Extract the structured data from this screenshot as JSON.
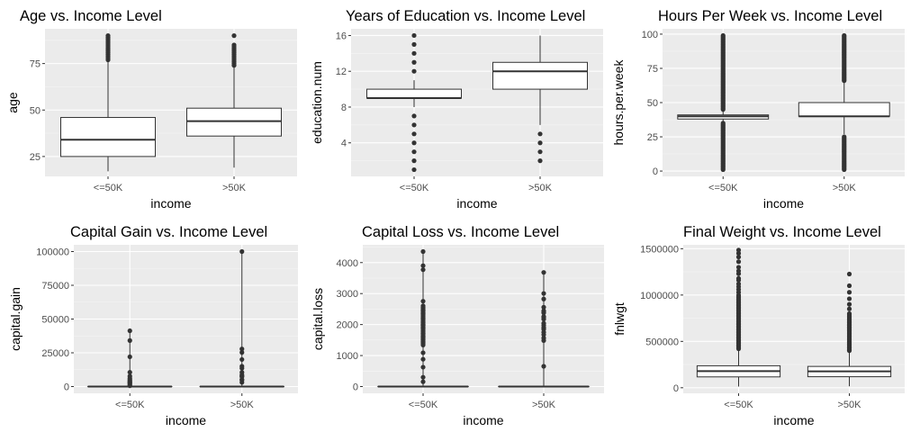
{
  "colors": {
    "panel": "#ebebeb",
    "grid_major": "#ffffff",
    "outlier": "#333333",
    "box_fill": "#ffffff",
    "box_line": "#333333"
  },
  "chart_data": [
    {
      "type": "boxplot",
      "title": "Age vs. Income Level",
      "xlabel": "income",
      "ylabel": "age",
      "categories": [
        "<=50K",
        ">50K"
      ],
      "ylim": [
        14.3,
        93.7
      ],
      "yticks": [
        25,
        50,
        75
      ],
      "ytick_labels": [
        "25",
        "50",
        "75"
      ],
      "boxes": [
        {
          "min": 17,
          "q1": 25,
          "median": 34,
          "q3": 46,
          "max": 90,
          "whisker_high": 76,
          "outliers": [
            77,
            78,
            79,
            80,
            81,
            82,
            83,
            84,
            85,
            86,
            87,
            88,
            89,
            90
          ]
        },
        {
          "min": 19,
          "q1": 36,
          "median": 44,
          "q3": 51,
          "max": 90,
          "whisker_high": 73,
          "outliers": [
            74,
            75,
            76,
            77,
            78,
            79,
            80,
            81,
            82,
            83,
            84,
            85,
            90
          ]
        }
      ]
    },
    {
      "type": "boxplot",
      "title": "Years of Education vs. Income Level",
      "xlabel": "income",
      "ylabel": "education.num",
      "categories": [
        "<=50K",
        ">50K"
      ],
      "ylim": [
        0.25,
        16.75
      ],
      "yticks": [
        4,
        8,
        12,
        16
      ],
      "ytick_labels": [
        "4",
        "8",
        "12",
        "16"
      ],
      "boxes": [
        {
          "min": 1,
          "whisker_low": 8,
          "q1": 9,
          "median": 9,
          "q3": 10,
          "whisker_high": 11,
          "max": 16,
          "outliers": [
            1,
            2,
            3,
            4,
            5,
            6,
            7,
            12,
            13,
            14,
            15,
            16
          ]
        },
        {
          "min": 2,
          "whisker_low": 6,
          "q1": 10,
          "median": 12,
          "q3": 13,
          "whisker_high": 16,
          "max": 16,
          "outliers": [
            2,
            3,
            4,
            5
          ]
        }
      ]
    },
    {
      "type": "boxplot",
      "title": "Hours Per Week vs. Income Level",
      "xlabel": "income",
      "ylabel": "hours.per.week",
      "categories": [
        "<=50K",
        ">50K"
      ],
      "ylim": [
        -3.9,
        103.9
      ],
      "yticks": [
        0,
        25,
        50,
        75,
        100
      ],
      "ytick_labels": [
        "0",
        "25",
        "50",
        "75",
        "100"
      ],
      "boxes": [
        {
          "min": 1,
          "whisker_low": 36,
          "q1": 38,
          "median": 40,
          "q3": 41,
          "whisker_high": 44,
          "max": 99,
          "outlier_range_low": [
            1,
            35
          ],
          "outlier_range_high": [
            45,
            99
          ]
        },
        {
          "min": 1,
          "whisker_low": 27,
          "q1": 40,
          "median": 40,
          "q3": 50,
          "whisker_high": 65,
          "max": 99,
          "outlier_range_low": [
            1,
            25
          ],
          "outlier_range_high": [
            66,
            99
          ]
        }
      ]
    },
    {
      "type": "boxplot",
      "title": "Capital Gain vs. Income Level",
      "xlabel": "income",
      "ylabel": "capital.gain",
      "categories": [
        "<=50K",
        ">50K"
      ],
      "ylim": [
        -5000,
        105000
      ],
      "yticks": [
        0,
        25000,
        50000,
        75000,
        100000
      ],
      "ytick_labels": [
        "0",
        "25000",
        "50000",
        "75000",
        "100000"
      ],
      "boxes": [
        {
          "min": 0,
          "q1": 0,
          "median": 0,
          "q3": 0,
          "max": 41310,
          "outliers": [
            594,
            1055,
            2174,
            2885,
            3411,
            4101,
            5013,
            6097,
            7688,
            10566,
            22040,
            34095,
            41310
          ]
        },
        {
          "min": 0,
          "q1": 0,
          "median": 0,
          "q3": 0,
          "max": 99999,
          "outliers": [
            3103,
            4787,
            5178,
            7298,
            7688,
            8614,
            10520,
            13550,
            15024,
            20051,
            25236,
            27828,
            99999
          ]
        }
      ]
    },
    {
      "type": "boxplot",
      "title": "Capital Loss vs. Income Level",
      "xlabel": "income",
      "ylabel": "capital.loss",
      "categories": [
        "<=50K",
        ">50K"
      ],
      "ylim": [
        -218,
        4574
      ],
      "yticks": [
        0,
        1000,
        2000,
        3000,
        4000
      ],
      "ytick_labels": [
        "0",
        "1000",
        "2000",
        "3000",
        "4000"
      ],
      "boxes": [
        {
          "min": 0,
          "q1": 0,
          "median": 0,
          "q3": 0,
          "max": 4356,
          "outliers": [
            155,
            300,
            625,
            880,
            1090,
            1340,
            1590,
            1720,
            1876,
            1980,
            2001,
            2205,
            2339,
            2467,
            2603,
            2754,
            3770,
            3900,
            4356
          ],
          "outlier_range": [
            1380,
            2560
          ]
        },
        {
          "min": 0,
          "q1": 0,
          "median": 0,
          "q3": 0,
          "max": 3683,
          "outliers": [
            653,
            1485,
            1564,
            1672,
            1755,
            1848,
            1887,
            1902,
            1977,
            2042,
            2174,
            2231,
            2258,
            2377,
            2415,
            2444,
            2559,
            2824,
            3004,
            3683
          ]
        }
      ]
    },
    {
      "type": "boxplot",
      "title": "Final Weight vs. Income Level",
      "xlabel": "income",
      "ylabel": "fnlwgt",
      "categories": [
        "<=50K",
        ">50K"
      ],
      "ylim": [
        -60000,
        1542000
      ],
      "yticks": [
        0,
        500000,
        1000000,
        1500000
      ],
      "ytick_labels": [
        "0",
        "500000",
        "1000000",
        "1500000"
      ],
      "boxes": [
        {
          "min": 12285,
          "q1": 117000,
          "median": 179000,
          "q3": 237000,
          "whisker_high": 416000,
          "max": 1484705,
          "outlier_range": [
            420000,
            1000000
          ],
          "outliers": [
            1030000,
            1060000,
            1090000,
            1120000,
            1160000,
            1180000,
            1230000,
            1260000,
            1300000,
            1360000,
            1410000,
            1450000,
            1484705
          ]
        },
        {
          "min": 14878,
          "q1": 119000,
          "median": 177000,
          "q3": 230000,
          "whisker_high": 396000,
          "max": 1226583,
          "outlier_range": [
            400000,
            800000
          ],
          "outliers": [
            850000,
            900000,
            960000,
            1030000,
            1100000,
            1226583
          ]
        }
      ]
    }
  ]
}
